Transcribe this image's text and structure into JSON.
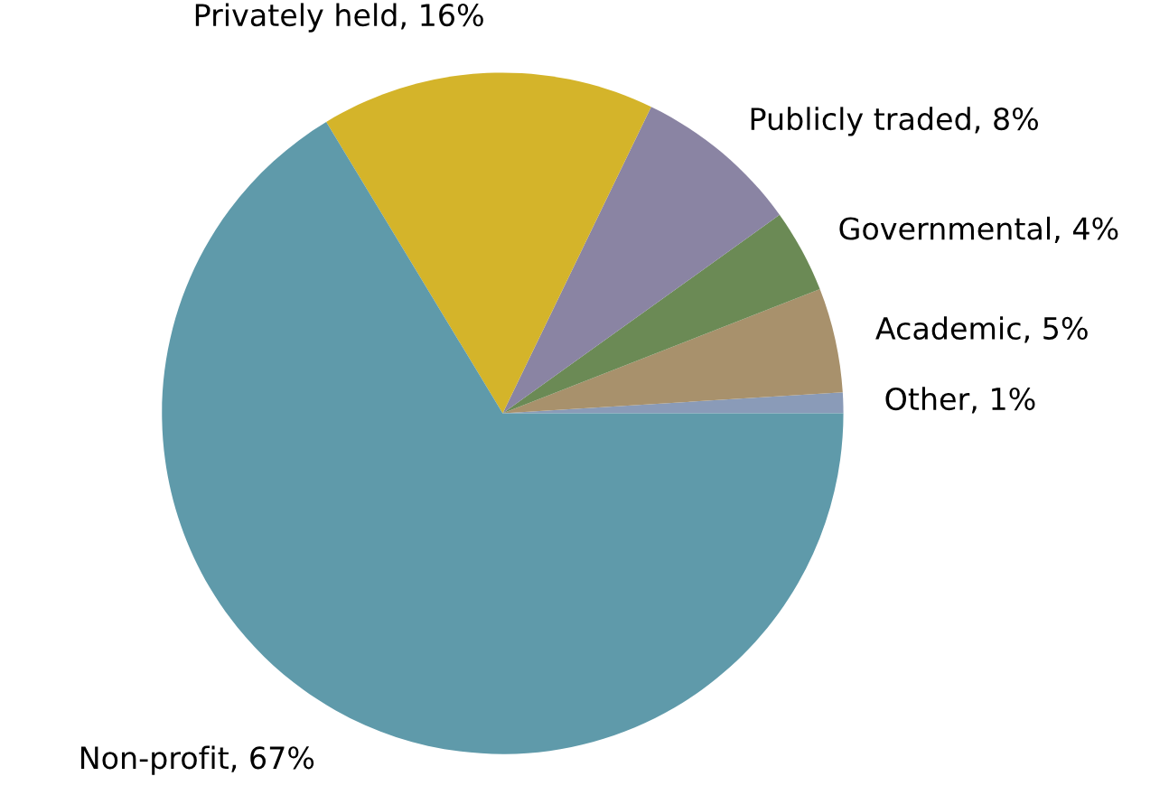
{
  "chart_data": {
    "type": "pie",
    "categories": [
      "Other",
      "Academic",
      "Governmental",
      "Publicly traded",
      "Privately held",
      "Non-profit"
    ],
    "values": [
      1,
      5,
      4,
      8,
      16,
      67
    ],
    "value_labels": [
      "1%",
      "5%",
      "4%",
      "8%",
      "16%",
      "67%"
    ],
    "colors": [
      "#8a9bb8",
      "#a8916c",
      "#6b8a55",
      "#8a84a3",
      "#d4b42a",
      "#5f9aaa"
    ],
    "legend": false
  }
}
